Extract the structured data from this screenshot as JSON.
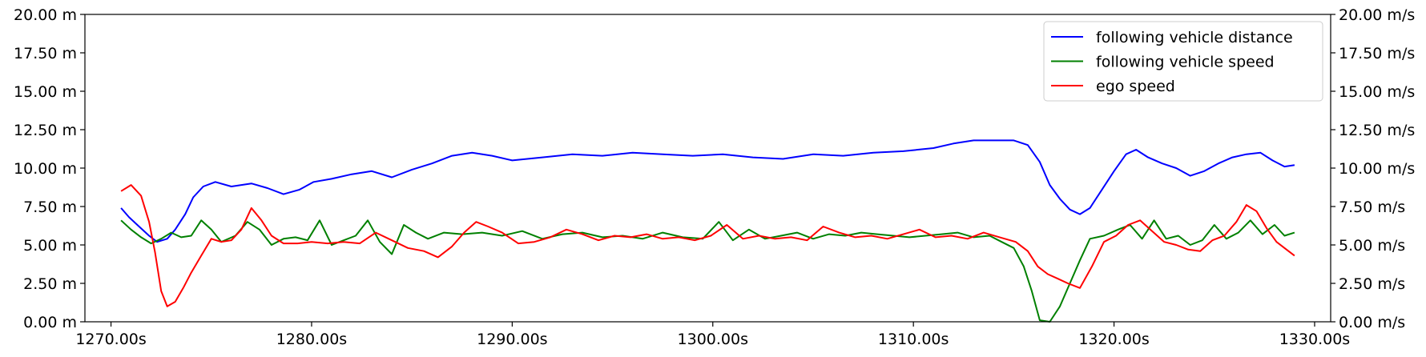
{
  "chart_data": {
    "type": "line",
    "title": "",
    "xlabel": "",
    "ylabel_left": "",
    "ylabel_right": "",
    "xlim": [
      1268.7,
      1330.8
    ],
    "ylim_left": [
      0,
      20
    ],
    "ylim_right": [
      0,
      20
    ],
    "x_ticks": [
      1270,
      1280,
      1290,
      1300,
      1310,
      1320,
      1330
    ],
    "x_tick_labels": [
      "1270.00s",
      "1280.00s",
      "1290.00s",
      "1300.00s",
      "1310.00s",
      "1320.00s",
      "1330.00s"
    ],
    "y_ticks": [
      0,
      2.5,
      5,
      7.5,
      10,
      12.5,
      15,
      17.5,
      20
    ],
    "y_left_tick_labels": [
      "0.00 m",
      "2.50 m",
      "5.00 m",
      "7.50 m",
      "10.00 m",
      "12.50 m",
      "15.00 m",
      "17.50 m",
      "20.00 m"
    ],
    "y_right_tick_labels": [
      "0.00 m/s",
      "2.50 m/s",
      "5.00 m/s",
      "7.50 m/s",
      "10.00 m/s",
      "12.50 m/s",
      "15.00 m/s",
      "17.50 m/s",
      "20.00 m/s"
    ],
    "grid": false,
    "legend_position": "top-right",
    "series": [
      {
        "name": "following vehicle distance",
        "color": "#0000ff",
        "x": [
          1270.5,
          1270.9,
          1271.4,
          1271.9,
          1272.3,
          1272.8,
          1273.2,
          1273.7,
          1274.1,
          1274.6,
          1275.2,
          1276.0,
          1277.0,
          1277.8,
          1278.6,
          1279.4,
          1280.1,
          1281.0,
          1282.0,
          1283.0,
          1284.0,
          1285.0,
          1286.0,
          1287.0,
          1288.0,
          1289.0,
          1290.0,
          1291.5,
          1293.0,
          1294.5,
          1296.0,
          1297.5,
          1299.0,
          1300.5,
          1302.0,
          1303.5,
          1305.0,
          1306.5,
          1308.0,
          1309.5,
          1311.0,
          1312.0,
          1313.0,
          1314.0,
          1315.0,
          1315.7,
          1316.3,
          1316.8,
          1317.3,
          1317.8,
          1318.3,
          1318.8,
          1319.4,
          1320.0,
          1320.6,
          1321.1,
          1321.7,
          1322.4,
          1323.1,
          1323.8,
          1324.5,
          1325.2,
          1325.9,
          1326.6,
          1327.3,
          1327.9,
          1328.5,
          1329.0
        ],
        "y": [
          7.4,
          6.8,
          6.2,
          5.6,
          5.2,
          5.4,
          6.0,
          7.0,
          8.1,
          8.8,
          9.1,
          8.8,
          9.0,
          8.7,
          8.3,
          8.6,
          9.1,
          9.3,
          9.6,
          9.8,
          9.4,
          9.9,
          10.3,
          10.8,
          11.0,
          10.8,
          10.5,
          10.7,
          10.9,
          10.8,
          11.0,
          10.9,
          10.8,
          10.9,
          10.7,
          10.6,
          10.9,
          10.8,
          11.0,
          11.1,
          11.3,
          11.6,
          11.8,
          11.8,
          11.8,
          11.5,
          10.4,
          8.9,
          8.0,
          7.3,
          7.0,
          7.4,
          8.6,
          9.8,
          10.9,
          11.2,
          10.7,
          10.3,
          10.0,
          9.5,
          9.8,
          10.3,
          10.7,
          10.9,
          11.0,
          10.5,
          10.1,
          10.2
        ]
      },
      {
        "name": "following vehicle speed",
        "color": "#008000",
        "x": [
          1270.5,
          1271.0,
          1271.5,
          1272.0,
          1272.5,
          1273.0,
          1273.5,
          1274.0,
          1274.5,
          1275.0,
          1275.5,
          1276.2,
          1276.8,
          1277.4,
          1278.0,
          1278.6,
          1279.2,
          1279.8,
          1280.4,
          1281.0,
          1281.6,
          1282.2,
          1282.8,
          1283.4,
          1284.0,
          1284.6,
          1285.2,
          1285.8,
          1286.6,
          1287.5,
          1288.5,
          1289.5,
          1290.5,
          1291.5,
          1292.5,
          1293.5,
          1294.5,
          1295.5,
          1296.5,
          1297.5,
          1298.5,
          1299.5,
          1300.3,
          1301.0,
          1301.8,
          1302.6,
          1303.4,
          1304.2,
          1305.0,
          1305.8,
          1306.6,
          1307.4,
          1308.2,
          1309.0,
          1309.8,
          1310.6,
          1311.4,
          1312.2,
          1313.0,
          1313.8,
          1314.4,
          1315.0,
          1315.5,
          1315.9,
          1316.3,
          1316.8,
          1317.3,
          1317.8,
          1318.3,
          1318.8,
          1319.5,
          1320.2,
          1320.8,
          1321.4,
          1322.0,
          1322.6,
          1323.2,
          1323.8,
          1324.4,
          1325.0,
          1325.6,
          1326.2,
          1326.8,
          1327.4,
          1328.0,
          1328.5,
          1329.0
        ],
        "y": [
          6.6,
          6.0,
          5.5,
          5.1,
          5.4,
          5.8,
          5.5,
          5.6,
          6.6,
          6.0,
          5.2,
          5.6,
          6.5,
          6.0,
          5.0,
          5.4,
          5.5,
          5.3,
          6.6,
          5.0,
          5.3,
          5.6,
          6.6,
          5.2,
          4.4,
          6.3,
          5.8,
          5.4,
          5.8,
          5.7,
          5.8,
          5.6,
          5.9,
          5.4,
          5.7,
          5.8,
          5.5,
          5.6,
          5.4,
          5.8,
          5.5,
          5.4,
          6.5,
          5.3,
          6.0,
          5.4,
          5.6,
          5.8,
          5.4,
          5.7,
          5.6,
          5.8,
          5.7,
          5.6,
          5.5,
          5.6,
          5.7,
          5.8,
          5.5,
          5.6,
          5.2,
          4.8,
          3.6,
          2.0,
          0.1,
          0.0,
          1.0,
          2.5,
          4.0,
          5.4,
          5.6,
          6.0,
          6.3,
          5.4,
          6.6,
          5.4,
          5.6,
          5.0,
          5.3,
          6.3,
          5.4,
          5.8,
          6.6,
          5.7,
          6.3,
          5.6,
          5.8
        ]
      },
      {
        "name": "ego speed",
        "color": "#ff0000",
        "x": [
          1270.5,
          1271.0,
          1271.5,
          1271.9,
          1272.2,
          1272.5,
          1272.8,
          1273.2,
          1273.6,
          1274.0,
          1274.5,
          1275.0,
          1275.5,
          1276.0,
          1276.5,
          1277.0,
          1277.5,
          1278.0,
          1278.6,
          1279.3,
          1280.0,
          1280.8,
          1281.6,
          1282.4,
          1283.2,
          1284.0,
          1284.8,
          1285.6,
          1286.3,
          1287.0,
          1287.6,
          1288.2,
          1288.8,
          1289.5,
          1290.3,
          1291.1,
          1291.9,
          1292.7,
          1293.5,
          1294.3,
          1295.1,
          1295.9,
          1296.7,
          1297.5,
          1298.3,
          1299.1,
          1299.9,
          1300.7,
          1301.5,
          1302.3,
          1303.1,
          1303.9,
          1304.7,
          1305.5,
          1306.3,
          1307.1,
          1307.9,
          1308.7,
          1309.5,
          1310.3,
          1311.1,
          1311.9,
          1312.7,
          1313.5,
          1314.3,
          1315.1,
          1315.7,
          1316.2,
          1316.7,
          1317.2,
          1317.7,
          1318.3,
          1318.9,
          1319.5,
          1320.1,
          1320.7,
          1321.3,
          1321.9,
          1322.5,
          1323.1,
          1323.7,
          1324.3,
          1324.9,
          1325.5,
          1326.1,
          1326.6,
          1327.1,
          1327.6,
          1328.1,
          1328.6,
          1329.0
        ],
        "y": [
          8.5,
          8.9,
          8.2,
          6.5,
          4.5,
          2.0,
          1.0,
          1.3,
          2.2,
          3.2,
          4.3,
          5.4,
          5.2,
          5.3,
          6.0,
          7.4,
          6.6,
          5.6,
          5.1,
          5.1,
          5.2,
          5.1,
          5.2,
          5.1,
          5.8,
          5.3,
          4.8,
          4.6,
          4.2,
          4.9,
          5.8,
          6.5,
          6.2,
          5.8,
          5.1,
          5.2,
          5.5,
          6.0,
          5.7,
          5.3,
          5.6,
          5.5,
          5.7,
          5.4,
          5.5,
          5.3,
          5.6,
          6.3,
          5.4,
          5.6,
          5.4,
          5.5,
          5.3,
          6.2,
          5.8,
          5.5,
          5.6,
          5.4,
          5.7,
          6.0,
          5.5,
          5.6,
          5.4,
          5.8,
          5.5,
          5.2,
          4.6,
          3.6,
          3.1,
          2.8,
          2.5,
          2.2,
          3.6,
          5.2,
          5.6,
          6.3,
          6.6,
          5.9,
          5.2,
          5.0,
          4.7,
          4.6,
          5.3,
          5.6,
          6.5,
          7.6,
          7.2,
          6.1,
          5.2,
          4.7,
          4.3
        ]
      }
    ]
  }
}
